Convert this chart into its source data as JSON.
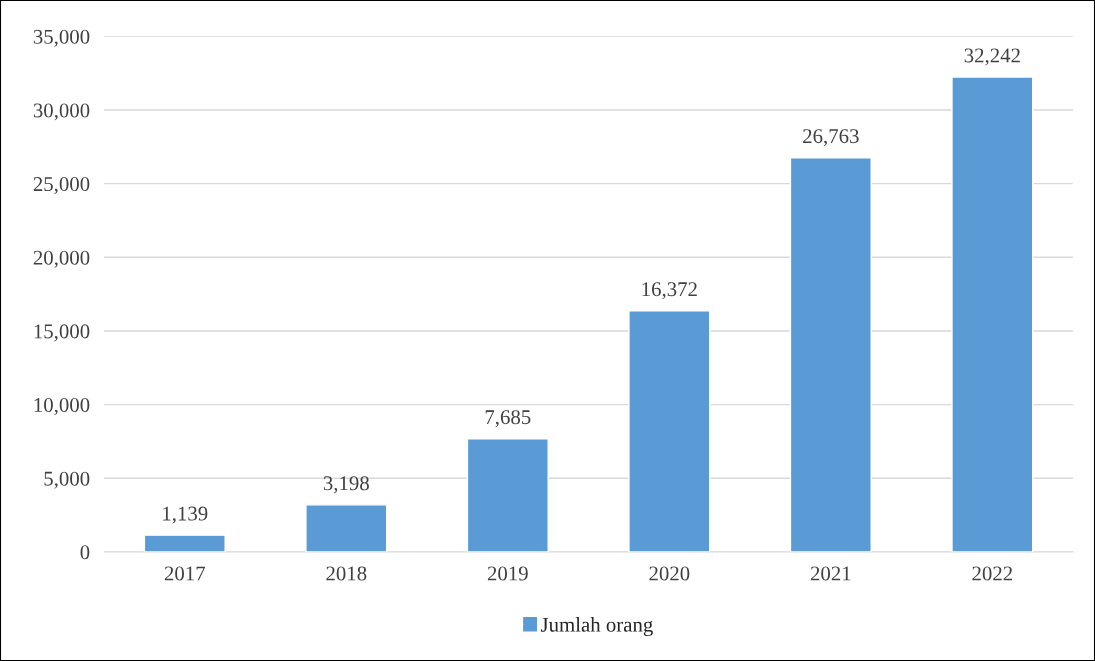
{
  "chart_data": {
    "type": "bar",
    "categories": [
      "2017",
      "2018",
      "2019",
      "2020",
      "2021",
      "2022"
    ],
    "series": [
      {
        "name": "Jumlah orang",
        "color": "#5b9bd5",
        "values": [
          1139,
          3198,
          7685,
          16372,
          26763,
          32242
        ],
        "value_labels": [
          "1,139",
          "3,198",
          "7,685",
          "16,372",
          "26,763",
          "32,242"
        ]
      }
    ],
    "ylim": [
      0,
      35000
    ],
    "yticks": [
      {
        "value": 0,
        "label": "0"
      },
      {
        "value": 5000,
        "label": "5,000"
      },
      {
        "value": 10000,
        "label": "10,000"
      },
      {
        "value": 15000,
        "label": "15,000"
      },
      {
        "value": 20000,
        "label": "20,000"
      },
      {
        "value": 25000,
        "label": "25,000"
      },
      {
        "value": 30000,
        "label": "30,000"
      },
      {
        "value": 35000,
        "label": "35,000"
      }
    ],
    "grid": "y",
    "legend": "bottom"
  }
}
